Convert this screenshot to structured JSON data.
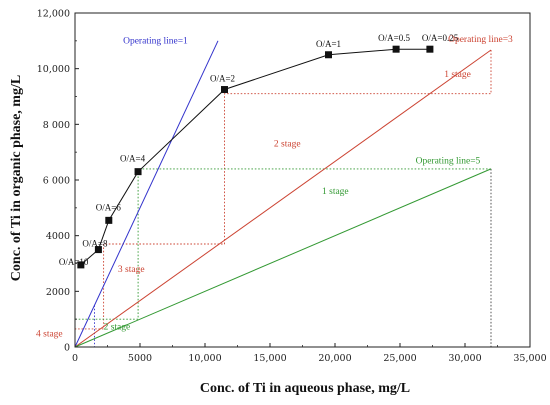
{
  "chart_data": {
    "type": "line",
    "xlabel": "Conc. of Ti in aqueous phase, mg/L",
    "ylabel": "Conc. of Ti in organic phase, mg/L",
    "xlim": [
      0,
      35000
    ],
    "ylim": [
      0,
      12000
    ],
    "x_ticks": [
      0,
      5000,
      10000,
      15000,
      20000,
      25000,
      30000,
      35000
    ],
    "x_tick_labels": [
      "0",
      "5000",
      "10,000",
      "15,000",
      "20,000",
      "25,000",
      "30,000",
      "35,000"
    ],
    "y_ticks": [
      0,
      2000,
      4000,
      6000,
      8000,
      10000,
      12000
    ],
    "y_tick_labels": [
      "0",
      "2000",
      "4000",
      "6 000",
      "8 000",
      "10,000",
      "12,000"
    ],
    "grid": false,
    "series": [
      {
        "name": "",
        "kind": "isotherm",
        "color": "#111111",
        "points": [
          {
            "x": 450,
            "y": 2950,
            "label": "O/A=10"
          },
          {
            "x": 1800,
            "y": 3500,
            "label": "O/A=8"
          },
          {
            "x": 2600,
            "y": 4550,
            "label": "O/A=6"
          },
          {
            "x": 4850,
            "y": 6300,
            "label": "O/A=4"
          },
          {
            "x": 11500,
            "y": 9250,
            "label": "O/A=2"
          },
          {
            "x": 19500,
            "y": 10500,
            "label": "O/A=1"
          },
          {
            "x": 24700,
            "y": 10700,
            "label": "O/A=0.5"
          },
          {
            "x": 27300,
            "y": 10700,
            "label": "O/A=0.25"
          }
        ]
      },
      {
        "name": "Operating line=1",
        "kind": "operating-line",
        "color": "#3333cc",
        "points": [
          {
            "x": 0,
            "y": 0
          },
          {
            "x": 11000,
            "y": 11000
          }
        ]
      },
      {
        "name": "Operating line=3",
        "kind": "operating-line",
        "color": "#cc4433",
        "points": [
          {
            "x": 0,
            "y": 0
          },
          {
            "x": 32000,
            "y": 10670
          }
        ]
      },
      {
        "name": "Operating line=5",
        "kind": "operating-line",
        "color": "#339933",
        "points": [
          {
            "x": 0,
            "y": 0
          },
          {
            "x": 32000,
            "y": 6400
          }
        ]
      }
    ],
    "stage_lines": [
      {
        "color": "#cc4433",
        "points": [
          [
            32000,
            10670
          ],
          [
            32000,
            9100
          ],
          [
            11500,
            9100
          ],
          [
            11500,
            3700
          ],
          [
            2200,
            3700
          ],
          [
            2200,
            650
          ],
          [
            0,
            650
          ]
        ]
      },
      {
        "color": "#339933",
        "points": [
          [
            32000,
            6400
          ],
          [
            4850,
            6400
          ],
          [
            4850,
            1000
          ],
          [
            0,
            1000
          ]
        ]
      },
      {
        "color": "#3333cc",
        "points": [
          [
            1500,
            1500
          ],
          [
            1500,
            0
          ]
        ]
      },
      {
        "color": "#444444",
        "points": [
          [
            32000,
            6400
          ],
          [
            32000,
            0
          ]
        ]
      }
    ],
    "annotations": [
      {
        "text": "Operating line=1",
        "x": 3700,
        "y": 10900,
        "color": "#3333cc"
      },
      {
        "text": "Operating line=3",
        "x": 28700,
        "y": 10950,
        "color": "#cc4433"
      },
      {
        "text": "Operating line=5",
        "x": 26200,
        "y": 6600,
        "color": "#339933"
      },
      {
        "text": "1 stage",
        "x": 28400,
        "y": 9700,
        "color": "#cc4433"
      },
      {
        "text": "2 stage",
        "x": 15300,
        "y": 7200,
        "color": "#cc4433"
      },
      {
        "text": "3 stage",
        "x": 3300,
        "y": 2700,
        "color": "#cc4433"
      },
      {
        "text": "4 stage",
        "x": -3000,
        "y": 380,
        "color": "#cc4433"
      },
      {
        "text": "1 stage",
        "x": 19000,
        "y": 5500,
        "color": "#339933"
      },
      {
        "text": "2 stage",
        "x": 2200,
        "y": 620,
        "color": "#339933"
      }
    ]
  }
}
